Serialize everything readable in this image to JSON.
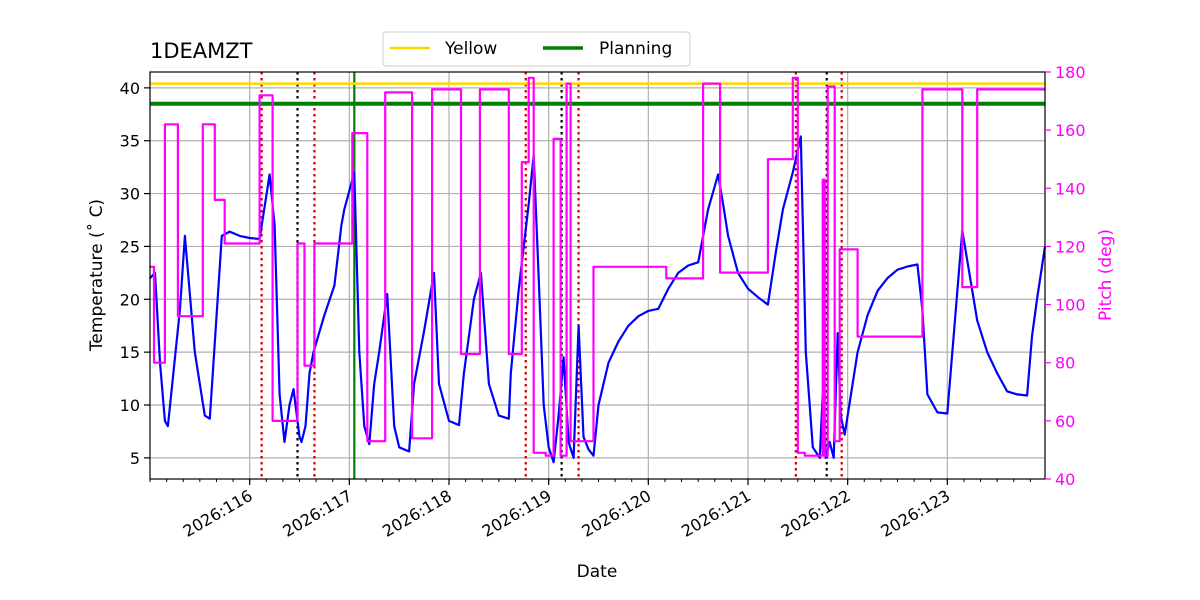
{
  "chart_data": {
    "type": "line",
    "title": "1DEAMZT",
    "xlabel": "Date",
    "ylabel": "Temperature ($^\\circ$C)",
    "ylabel_display": "Temperature (˚ C)",
    "y2label": "Pitch (deg)",
    "xlim": [
      115.0,
      123.98
    ],
    "ylim": [
      3.0,
      41.5
    ],
    "y2lim": [
      40,
      180
    ],
    "x_ticks": [
      {
        "value": 116,
        "label": "2026:116"
      },
      {
        "value": 117,
        "label": "2026:117"
      },
      {
        "value": 118,
        "label": "2026:118"
      },
      {
        "value": 119,
        "label": "2026:119"
      },
      {
        "value": 120,
        "label": "2026:120"
      },
      {
        "value": 121,
        "label": "2026:121"
      },
      {
        "value": 122,
        "label": "2026:122"
      },
      {
        "value": 123,
        "label": "2026:123"
      }
    ],
    "y_ticks": [
      5,
      10,
      15,
      20,
      25,
      30,
      35,
      40
    ],
    "y2_ticks": [
      40,
      60,
      80,
      100,
      120,
      140,
      160,
      180
    ],
    "grid": true,
    "legend": {
      "placement": "top-center-outside",
      "entries": [
        {
          "name": "Yellow",
          "color": "#ffd700"
        },
        {
          "name": "Planning",
          "color": "#008000"
        }
      ]
    },
    "colors": {
      "temperature": "#0000ff",
      "pitch": "#ff00ff",
      "y2axis": "#ff00ff",
      "red_marker": "#cc0000",
      "black_marker": "#000000",
      "green_marker": "#008000"
    },
    "hlines": [
      {
        "name": "Yellow",
        "y": 40.4,
        "color": "#ffd700"
      },
      {
        "name": "Planning",
        "y": 38.5,
        "color": "#008000"
      }
    ],
    "vlines": [
      {
        "x": 116.12,
        "color": "#cc0000",
        "style": "dotted"
      },
      {
        "x": 116.48,
        "color": "#000000",
        "style": "dotted"
      },
      {
        "x": 116.65,
        "color": "#cc0000",
        "style": "dotted"
      },
      {
        "x": 117.05,
        "color": "#008000",
        "style": "solid"
      },
      {
        "x": 118.77,
        "color": "#cc0000",
        "style": "dotted"
      },
      {
        "x": 119.13,
        "color": "#000000",
        "style": "dotted"
      },
      {
        "x": 119.3,
        "color": "#cc0000",
        "style": "dotted"
      },
      {
        "x": 121.48,
        "color": "#cc0000",
        "style": "dotted"
      },
      {
        "x": 121.79,
        "color": "#000000",
        "style": "dotted"
      },
      {
        "x": 121.94,
        "color": "#cc0000",
        "style": "dotted"
      }
    ],
    "series": [
      {
        "name": "1DEAMZT",
        "axis": "left",
        "color": "#0000ff",
        "x": [
          115.0,
          115.05,
          115.1,
          115.15,
          115.18,
          115.3,
          115.35,
          115.45,
          115.55,
          115.6,
          115.72,
          115.8,
          115.9,
          116.0,
          116.1,
          116.2,
          116.25,
          116.3,
          116.35,
          116.4,
          116.44,
          116.5,
          116.52,
          116.56,
          116.6,
          116.64,
          116.75,
          116.85,
          116.92,
          116.95,
          117.05,
          117.1,
          117.15,
          117.2,
          117.25,
          117.3,
          117.38,
          117.45,
          117.5,
          117.6,
          117.65,
          117.75,
          117.85,
          117.9,
          118.0,
          118.1,
          118.15,
          118.25,
          118.32,
          118.4,
          118.5,
          118.6,
          118.62,
          118.7,
          118.8,
          118.85,
          118.9,
          118.95,
          119.0,
          119.05,
          119.1,
          119.15,
          119.2,
          119.25,
          119.3,
          119.35,
          119.4,
          119.45,
          119.5,
          119.6,
          119.7,
          119.8,
          119.9,
          120.0,
          120.1,
          120.2,
          120.3,
          120.4,
          120.5,
          120.6,
          120.7,
          120.75,
          120.8,
          120.9,
          121.0,
          121.1,
          121.2,
          121.28,
          121.35,
          121.45,
          121.53,
          121.58,
          121.65,
          121.72,
          121.75,
          121.78,
          121.82,
          121.86,
          121.9,
          121.93,
          121.97,
          122.05,
          122.1,
          122.2,
          122.3,
          122.4,
          122.5,
          122.6,
          122.7,
          122.75,
          122.8,
          122.9,
          123.0,
          123.15,
          123.3,
          123.4,
          123.5,
          123.6,
          123.7,
          123.8,
          123.85,
          123.9,
          123.98
        ],
        "y": [
          22.0,
          22.5,
          14.0,
          8.5,
          8.0,
          19.0,
          26.0,
          15.0,
          9.0,
          8.7,
          26.0,
          26.4,
          26.0,
          25.8,
          25.7,
          31.8,
          27.0,
          11.0,
          6.5,
          10.0,
          11.5,
          7.0,
          6.5,
          8.0,
          13.0,
          15.0,
          18.5,
          21.3,
          27.0,
          28.5,
          32.0,
          15.0,
          8.0,
          6.3,
          12.0,
          15.0,
          20.5,
          8.0,
          6.0,
          5.6,
          12.0,
          17.0,
          22.5,
          12.0,
          8.5,
          8.1,
          13.0,
          20.0,
          22.5,
          12.0,
          9.0,
          8.7,
          13.0,
          21.0,
          29.0,
          33.6,
          22.0,
          10.0,
          6.0,
          4.6,
          9.0,
          14.5,
          6.5,
          5.0,
          17.5,
          7.0,
          5.8,
          5.2,
          10.0,
          14.0,
          16.0,
          17.5,
          18.4,
          18.9,
          19.1,
          21.0,
          22.5,
          23.2,
          23.5,
          28.5,
          31.8,
          29.0,
          26.0,
          22.5,
          21.0,
          20.2,
          19.5,
          24.5,
          28.5,
          32.0,
          35.4,
          15.0,
          6.0,
          5.0,
          11.0,
          5.0,
          6.5,
          5.0,
          16.8,
          9.0,
          7.2,
          12.0,
          15.0,
          18.5,
          20.8,
          22.0,
          22.8,
          23.1,
          23.3,
          19.0,
          11.0,
          9.3,
          9.2,
          26.5,
          18.0,
          15.0,
          13.0,
          11.3,
          11.0,
          10.9,
          16.5,
          20.0,
          25.0
        ]
      },
      {
        "name": "Pitch",
        "axis": "right",
        "color": "#ff00ff",
        "x": [
          115.0,
          115.04,
          115.04,
          115.15,
          115.15,
          115.28,
          115.28,
          115.32,
          115.32,
          115.53,
          115.53,
          115.65,
          115.65,
          115.72,
          115.72,
          115.75,
          115.75,
          116.1,
          116.1,
          116.23,
          116.23,
          116.3,
          116.3,
          116.48,
          116.48,
          116.55,
          116.55,
          116.65,
          116.65,
          116.9,
          116.9,
          117.03,
          117.03,
          117.18,
          117.18,
          117.22,
          117.22,
          117.36,
          117.36,
          117.63,
          117.63,
          117.83,
          117.83,
          118.12,
          118.12,
          118.31,
          118.31,
          118.6,
          118.6,
          118.73,
          118.73,
          118.8,
          118.8,
          118.85,
          118.85,
          118.97,
          118.97,
          119.05,
          119.05,
          119.12,
          119.12,
          119.18,
          119.18,
          119.22,
          119.22,
          119.27,
          119.27,
          119.45,
          119.45,
          120.18,
          120.18,
          120.55,
          120.55,
          120.72,
          120.72,
          121.2,
          121.2,
          121.45,
          121.45,
          121.5,
          121.5,
          121.57,
          121.57,
          121.75,
          121.75,
          121.77,
          121.77,
          121.8,
          121.8,
          121.87,
          121.87,
          121.92,
          121.92,
          122.1,
          122.1,
          122.75,
          122.75,
          123.15,
          123.15,
          123.3,
          123.3,
          123.85,
          123.85,
          123.98
        ],
        "y": [
          113,
          113,
          80,
          80,
          162,
          162,
          96,
          96,
          96,
          96,
          162,
          162,
          136,
          136,
          136,
          136,
          121,
          121,
          172,
          172,
          60,
          60,
          60,
          60,
          121,
          121,
          79,
          79,
          121,
          121,
          121,
          121,
          159,
          159,
          53,
          53,
          53,
          53,
          173,
          173,
          54,
          54,
          174,
          174,
          83,
          83,
          174,
          174,
          83,
          83,
          149,
          149,
          178,
          178,
          49,
          49,
          48,
          48,
          157,
          157,
          48,
          48,
          176,
          176,
          53,
          53,
          53,
          53,
          113,
          113,
          109,
          109,
          176,
          176,
          111,
          111,
          150,
          150,
          178,
          178,
          49,
          49,
          48,
          48,
          143,
          143,
          48,
          48,
          175,
          175,
          53,
          53,
          119,
          119,
          89,
          89,
          174,
          174,
          106,
          106,
          174,
          174,
          174,
          174
        ]
      }
    ]
  }
}
